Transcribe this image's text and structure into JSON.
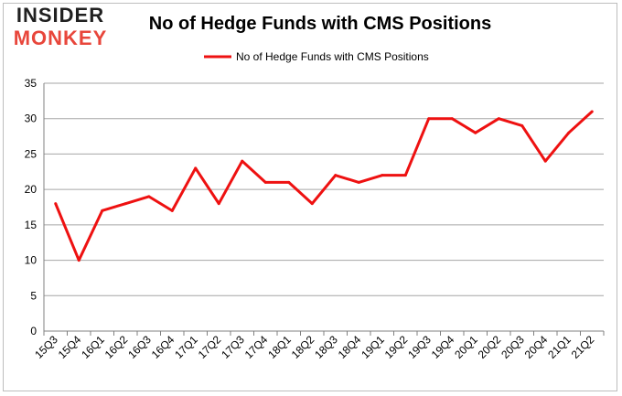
{
  "brand": {
    "logo_top": "INSIDER",
    "logo_bottom": "MONKEY"
  },
  "chart_data": {
    "type": "line",
    "title": "No of Hedge Funds with CMS Positions",
    "xlabel": "",
    "ylabel": "",
    "categories": [
      "15Q3",
      "15Q4",
      "16Q1",
      "16Q2",
      "16Q3",
      "16Q4",
      "17Q1",
      "17Q2",
      "17Q3",
      "17Q4",
      "18Q1",
      "18Q2",
      "18Q3",
      "18Q4",
      "19Q1",
      "19Q2",
      "19Q3",
      "19Q4",
      "20Q1",
      "20Q2",
      "20Q3",
      "20Q4",
      "21Q1",
      "21Q2"
    ],
    "series": [
      {
        "name": "No of Hedge Funds with CMS Positions",
        "values": [
          18,
          10,
          17,
          18,
          19,
          17,
          23,
          18,
          24,
          21,
          21,
          18,
          22,
          21,
          22,
          22,
          30,
          30,
          28,
          30,
          29,
          24,
          28,
          31
        ],
        "color": "#ee1111"
      }
    ],
    "ylim": [
      0,
      35
    ],
    "yticks": [
      0,
      5,
      10,
      15,
      20,
      25,
      30,
      35
    ],
    "grid": true,
    "legend": "top-center"
  }
}
